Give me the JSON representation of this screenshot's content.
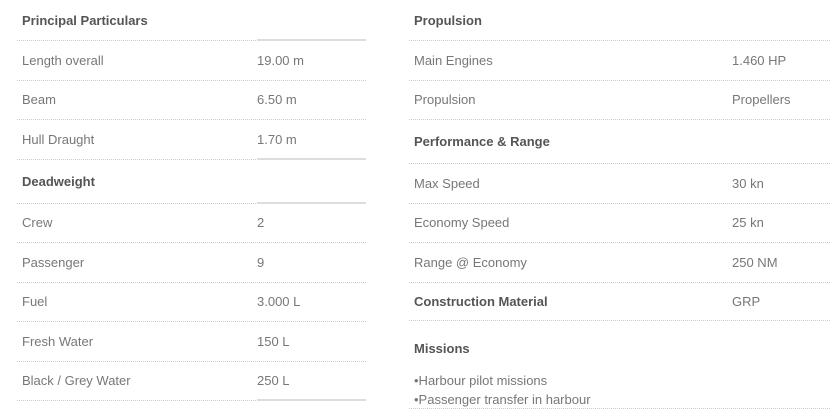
{
  "left": {
    "sections": [
      {
        "title": "Principal Particulars",
        "rows": [
          [
            "Length overall",
            "19.00 m"
          ],
          [
            "Beam",
            "6.50 m"
          ],
          [
            "Hull Draught",
            "1.70 m"
          ]
        ]
      },
      {
        "title": "Deadweight",
        "rows": [
          [
            "Crew",
            "2"
          ],
          [
            "Passenger",
            "9"
          ],
          [
            "Fuel",
            "3.000 L"
          ],
          [
            "Fresh Water",
            "150 L"
          ],
          [
            "Black / Grey Water",
            "250 L"
          ]
        ]
      }
    ]
  },
  "right": {
    "propulsion": {
      "title": "Propulsion",
      "rows": [
        [
          "Main Engines",
          "1.460 HP"
        ],
        [
          "Propulsion",
          "Propellers"
        ]
      ]
    },
    "performance": {
      "title": "Performance & Range",
      "rows": [
        [
          "Max Speed",
          "30 kn"
        ],
        [
          "Economy Speed",
          "25 kn"
        ],
        [
          "Range @ Economy",
          "250 NM"
        ]
      ]
    },
    "construction": {
      "label": "Construction Material",
      "value": "GRP"
    },
    "missions": {
      "title": "Missions",
      "items": [
        "•Harbour pilot missions",
        "•Passenger transfer in harbour"
      ]
    }
  }
}
